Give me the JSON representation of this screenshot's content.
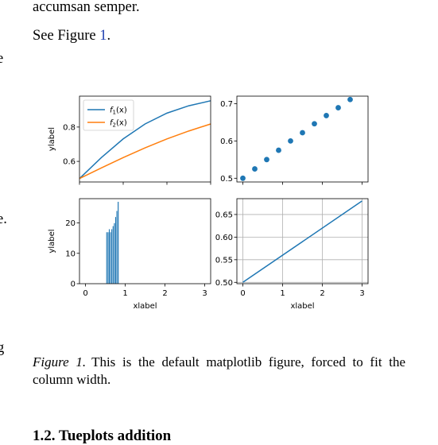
{
  "paragraph_tail": "accumsan semper.",
  "see_prefix": "See Figure ",
  "see_ref": "1",
  "see_suffix": ".",
  "margin_fragments": [
    "e",
    "e.",
    "g"
  ],
  "caption": {
    "label": "Figure 1.",
    "text": "This is the default matplotlib figure, forced to fit the column width."
  },
  "section_heading": "1.2. Tueplots addition",
  "colors": {
    "blue": "#1f77b4",
    "orange": "#ff7f0e",
    "link": "#1f3fb0"
  },
  "chart_data": [
    {
      "type": "line",
      "position": "top-left",
      "xlabel": "",
      "ylabel": "ylabel",
      "xlim": [
        0,
        3
      ],
      "ylim": [
        0.48,
        0.98
      ],
      "xticks": [
        0,
        1,
        2,
        3
      ],
      "xtick_labels_shown": false,
      "yticks": [
        0.6,
        0.8
      ],
      "ytick_labels": [
        "0.6",
        "0.8"
      ],
      "legend": "top-left",
      "grid": false,
      "series": [
        {
          "name": "f_1(x)",
          "legend_main": "f",
          "legend_sub": "1",
          "legend_arg": "(x)",
          "color": "#1f77b4",
          "x": [
            0,
            0.5,
            1,
            1.5,
            2,
            2.5,
            3
          ],
          "y": [
            0.5,
            0.622,
            0.731,
            0.818,
            0.881,
            0.924,
            0.953
          ]
        },
        {
          "name": "f_2(x)",
          "legend_main": "f",
          "legend_sub": "2",
          "legend_arg": "(x)",
          "color": "#ff7f0e",
          "x": [
            0,
            0.5,
            1,
            1.5,
            2,
            2.5,
            3
          ],
          "y": [
            0.5,
            0.562,
            0.622,
            0.679,
            0.731,
            0.777,
            0.818
          ]
        }
      ]
    },
    {
      "type": "scatter",
      "position": "top-right",
      "xlabel": "",
      "ylabel": "",
      "xlim": [
        -0.15,
        3.15
      ],
      "ylim": [
        0.49,
        0.72
      ],
      "xticks": [
        0,
        1,
        2,
        3
      ],
      "xtick_labels_shown": false,
      "yticks": [
        0.5,
        0.6,
        0.7
      ],
      "ytick_labels": [
        "0.5",
        "0.6",
        "0.7"
      ],
      "grid": false,
      "series": [
        {
          "color": "#1f77b4",
          "x": [
            0,
            0.3,
            0.6,
            0.9,
            1.2,
            1.5,
            1.8,
            2.1,
            2.4,
            2.7
          ],
          "y": [
            0.5,
            0.525,
            0.55,
            0.575,
            0.6,
            0.622,
            0.646,
            0.668,
            0.689,
            0.711
          ]
        }
      ]
    },
    {
      "type": "bar",
      "position": "bottom-left",
      "xlabel": "xlabel",
      "ylabel": "ylabel",
      "xlim": [
        -0.15,
        3.15
      ],
      "ylim": [
        0,
        28
      ],
      "xticks": [
        0,
        1,
        2,
        3
      ],
      "xtick_labels": [
        "0",
        "1",
        "2",
        "3"
      ],
      "yticks": [
        0,
        10,
        20
      ],
      "ytick_labels": [
        "0",
        "10",
        "20"
      ],
      "grid": false,
      "bar_width": 0.032,
      "series": [
        {
          "color": "#1f77b4",
          "x": [
            0.52,
            0.552,
            0.584,
            0.616,
            0.648,
            0.68,
            0.712,
            0.744,
            0.776,
            0.808
          ],
          "values": [
            17,
            17,
            18,
            17,
            18,
            19,
            20,
            22,
            24,
            27
          ]
        }
      ]
    },
    {
      "type": "line",
      "position": "bottom-right",
      "xlabel": "xlabel",
      "ylabel": "",
      "xlim": [
        -0.15,
        3.15
      ],
      "ylim": [
        0.497,
        0.685
      ],
      "xticks": [
        0,
        1,
        2,
        3
      ],
      "xtick_labels": [
        "0",
        "1",
        "2",
        "3"
      ],
      "yticks": [
        0.5,
        0.55,
        0.6,
        0.65
      ],
      "ytick_labels": [
        "0.50",
        "0.55",
        "0.60",
        "0.65"
      ],
      "grid": true,
      "series": [
        {
          "color": "#1f77b4",
          "x": [
            0,
            3
          ],
          "y": [
            0.5,
            0.68
          ]
        }
      ]
    }
  ]
}
